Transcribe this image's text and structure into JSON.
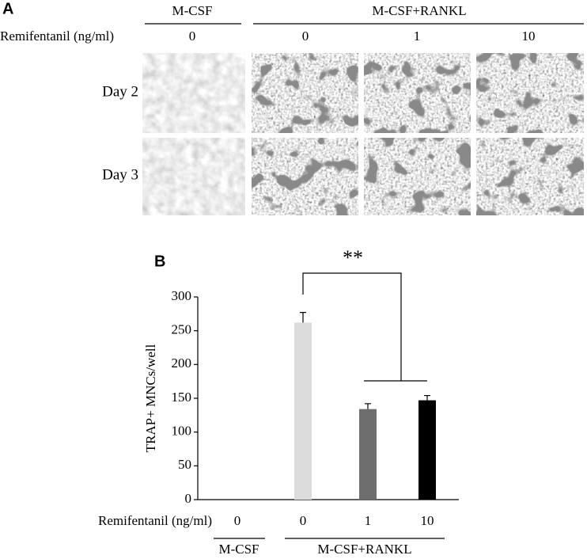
{
  "panel_a": {
    "label": "A",
    "groups": [
      "M-CSF",
      "M-CSF+RANKL"
    ],
    "row_label": "Remifentanil (ng/ml)",
    "doses": [
      "0",
      "0",
      "1",
      "10"
    ],
    "days": [
      "Day 2",
      "Day 3"
    ]
  },
  "chart_data": {
    "type": "bar",
    "panel_label": "B",
    "y_label": "TRAP+ MNCs/well",
    "x_label": "Remifentanil (ng/ml)",
    "categories": [
      "0",
      "0",
      "1",
      "10"
    ],
    "values": [
      0,
      262,
      134,
      147
    ],
    "errors": [
      null,
      15,
      8,
      7
    ],
    "colors": [
      "#dcdcdc",
      "#dcdcdc",
      "#6e6e6e",
      "#000000"
    ],
    "groups": [
      "M-CSF",
      "M-CSF+RANKL"
    ],
    "annotation": "**",
    "ylim": [
      0,
      300
    ],
    "yticks": [
      0,
      50,
      100,
      150,
      200,
      250,
      300
    ]
  }
}
